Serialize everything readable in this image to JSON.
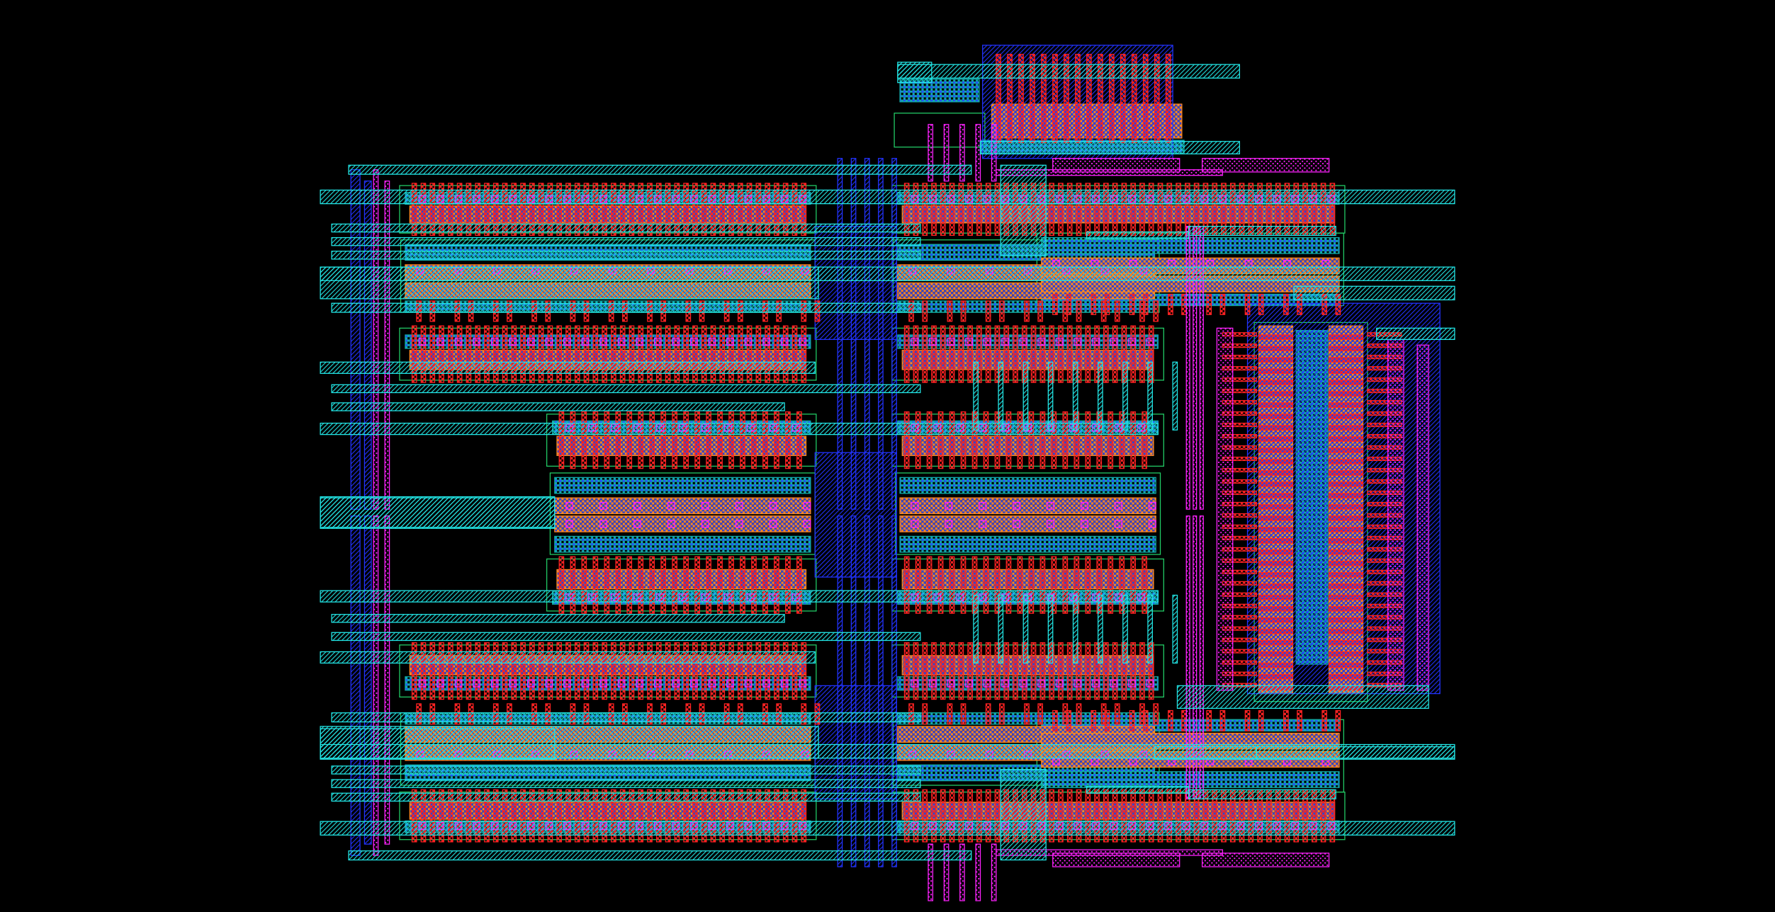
{
  "view": {
    "background": "#000000"
  },
  "layers": [
    {
      "id": "metal1",
      "color": "#22e6e6",
      "pattern": "hatch"
    },
    {
      "id": "metal2",
      "color": "#2233ff",
      "pattern": "hatch"
    },
    {
      "id": "poly",
      "color": "#ff2222",
      "pattern": "checker"
    },
    {
      "id": "diffusion",
      "color": "#ff8822",
      "pattern": "checker"
    },
    {
      "id": "active",
      "color": "#11aaaa",
      "pattern": "checker"
    },
    {
      "id": "contact",
      "color": "#ff22ff",
      "pattern": "dots"
    },
    {
      "id": "nwell",
      "color": "#22cc66",
      "pattern": "outline"
    }
  ]
}
